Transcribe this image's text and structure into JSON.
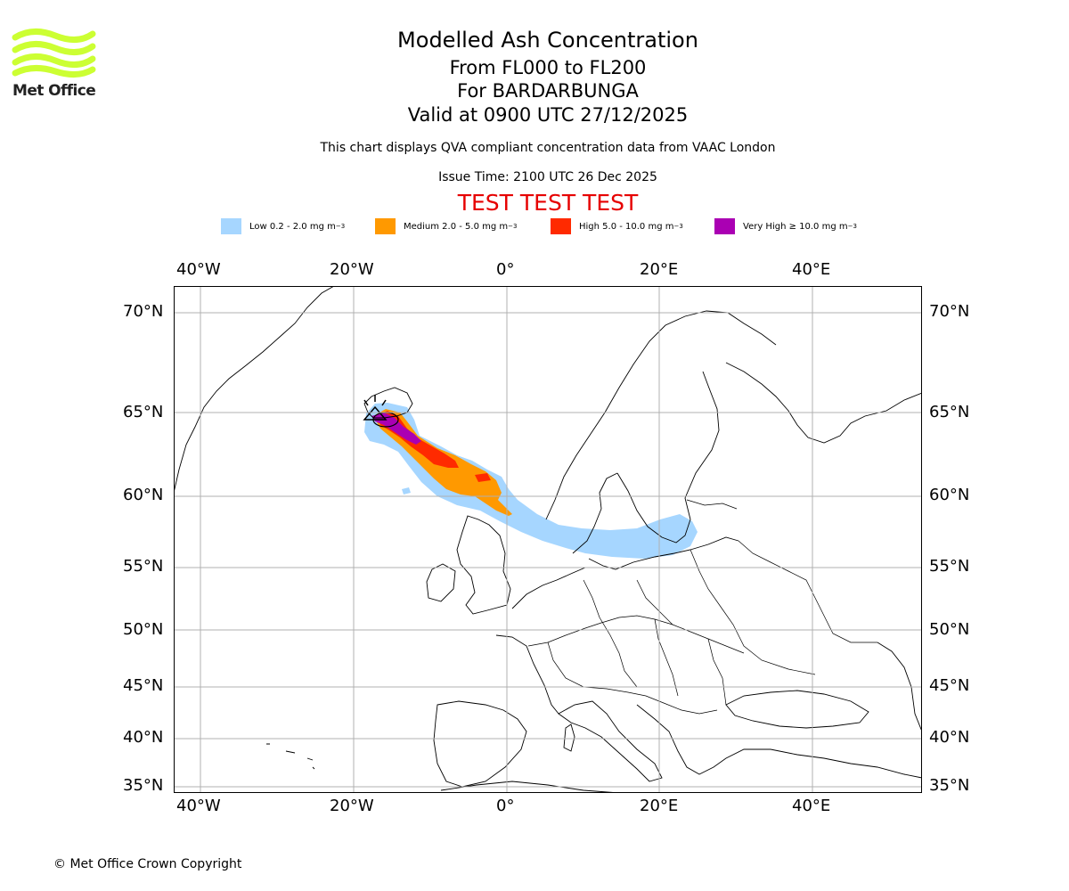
{
  "header": {
    "title": "Modelled Ash Concentration",
    "levels": "From FL000 to FL200",
    "volcano": "For BARDARBUNGA",
    "valid": "Valid at 0900 UTC 27/12/2025",
    "description": "This chart displays QVA compliant concentration data from VAAC London",
    "issue_time": "Issue Time: 2100 UTC 26 Dec 2025",
    "test_banner": "TEST TEST TEST"
  },
  "logo": {
    "text": "Met Office",
    "color": "#ccff33"
  },
  "legend": [
    {
      "label": "Low 0.2 - 2.0 mg m",
      "exp": "−3",
      "color": "#a6d6ff"
    },
    {
      "label": "Medium 2.0 - 5.0 mg m",
      "exp": "−3",
      "color": "#ff9900"
    },
    {
      "label": "High 5.0 - 10.0 mg m",
      "exp": "−3",
      "color": "#ff2a00"
    },
    {
      "label": "Very High  ≥  10.0 mg m",
      "exp": "−3",
      "color": "#aa00b3"
    }
  ],
  "axes": {
    "lon_ticks": [
      "40°W",
      "20°W",
      "0°",
      "20°E",
      "40°E"
    ],
    "lat_ticks": [
      "70°N",
      "65°N",
      "60°N",
      "55°N",
      "50°N",
      "45°N",
      "40°N",
      "35°N"
    ]
  },
  "footer": {
    "copyright": "© Met Office Crown Copyright"
  }
}
